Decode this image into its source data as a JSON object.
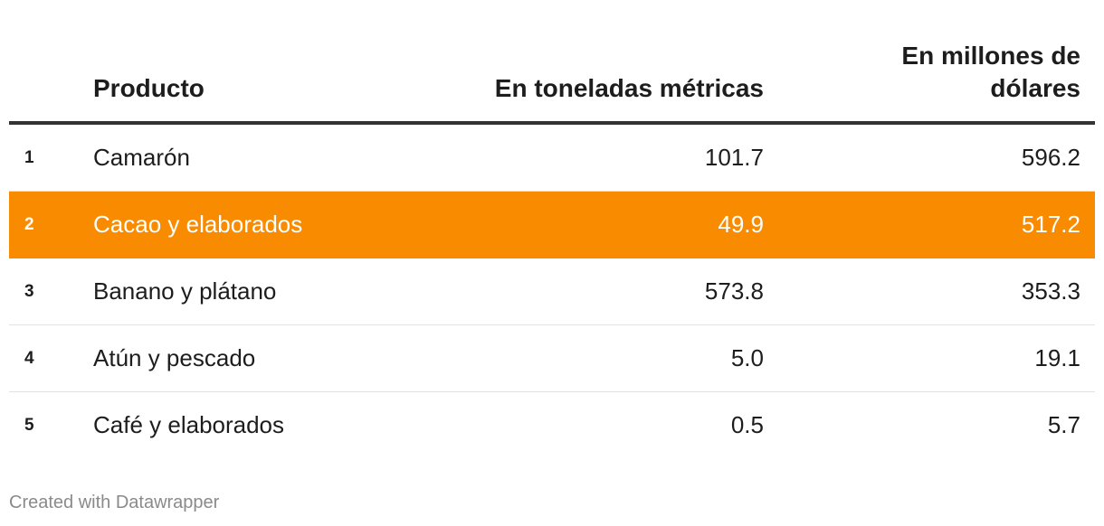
{
  "chart_data": {
    "type": "table",
    "columns": [
      "",
      "Producto",
      "En toneladas métricas",
      "En millones de dólares"
    ],
    "highlight_color": "#f98b00",
    "highlight_row": 2,
    "rows": [
      {
        "rank": "1",
        "product": "Camarón",
        "tons": "101.7",
        "usd": "596.2"
      },
      {
        "rank": "2",
        "product": "Cacao y elaborados",
        "tons": "49.9",
        "usd": "517.2"
      },
      {
        "rank": "3",
        "product": "Banano y plátano",
        "tons": "573.8",
        "usd": "353.3"
      },
      {
        "rank": "4",
        "product": "Atún y pescado",
        "tons": "5.0",
        "usd": "19.1"
      },
      {
        "rank": "5",
        "product": "Café y elaborados",
        "tons": "0.5",
        "usd": "5.7"
      }
    ]
  },
  "footer": {
    "credit": "Created with Datawrapper"
  }
}
